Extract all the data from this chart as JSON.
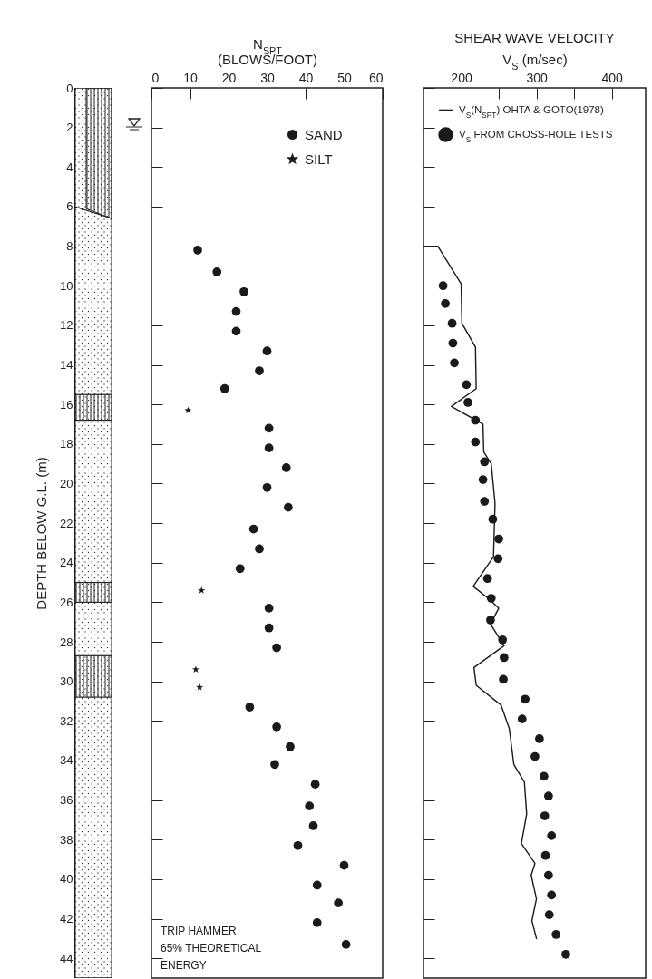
{
  "chart_data": [
    {
      "type": "scatter",
      "xlabel": "N$_{SPT}$\n(BLOWS/FOOT)",
      "ylabel": "DEPTH BELOW G.L. (m)",
      "xlim": [
        0,
        60
      ],
      "xticks": [
        0,
        10,
        20,
        30,
        40,
        50,
        60
      ],
      "ylim": [
        45,
        0
      ],
      "yticks": [
        0,
        2,
        4,
        6,
        8,
        10,
        12,
        14,
        16,
        18,
        20,
        22,
        24,
        26,
        28,
        30,
        32,
        34,
        36,
        38,
        40,
        42,
        44
      ],
      "legend": "top right",
      "annotations": [
        "TRIP HAMMER\n65% THEORETICAL\nENERGY"
      ],
      "series": [
        {
          "name": "SAND",
          "color": "#1a1a1a",
          "marker": "circle",
          "x": [
            12,
            17,
            24,
            22,
            22,
            30,
            28,
            19,
            30.5,
            30.5,
            35,
            30,
            35.5,
            26.5,
            28,
            23,
            30.5,
            30.5,
            32.5,
            25.5,
            32.5,
            36,
            32,
            42.5,
            41,
            42,
            38,
            50,
            43,
            48.5,
            43,
            50.5
          ],
          "values": [
            8.2,
            9.3,
            10.3,
            11.3,
            12.3,
            13.3,
            14.3,
            15.2,
            17.2,
            18.2,
            19.2,
            20.2,
            21.2,
            22.3,
            23.3,
            24.3,
            26.3,
            27.3,
            28.3,
            31.3,
            32.3,
            33.3,
            34.2,
            35.2,
            36.3,
            37.3,
            38.3,
            39.3,
            40.3,
            41.2,
            42.2,
            43.3
          ]
        },
        {
          "name": "SILT",
          "color": "#1a1a1a",
          "marker": "star",
          "x": [
            9.5,
            13,
            11.5,
            12.5
          ],
          "values": [
            16.3,
            25.4,
            29.4,
            30.3
          ]
        }
      ]
    },
    {
      "type": "scatter",
      "title": "SHEAR WAVE VELOCITY",
      "xlabel": "V$_{S}$ (m/sec)",
      "xlim": [
        150,
        445
      ],
      "xticks": [
        200,
        {
          "value": 250,
          "label": null
        },
        300,
        {
          "value": 350,
          "label": null
        },
        400
      ],
      "ylim": [
        45,
        0
      ],
      "yticks": [
        0,
        2,
        4,
        6,
        8,
        10,
        12,
        14,
        16,
        18,
        20,
        22,
        24,
        26,
        28,
        30,
        32,
        34,
        36,
        38,
        40,
        42,
        44
      ],
      "tick_labels": "x",
      "legend": "top left",
      "series": [
        {
          "name": "V$_{S}$(N$_{SPT}$) OHTA & GOTO(1978)",
          "type": "line",
          "color": "#1a1a1a",
          "x": [
            150,
            169,
            200,
            201,
            219,
            220,
            187,
            229,
            230,
            240,
            245,
            243,
            216,
            236,
            250,
            239,
            257,
            217,
            220,
            253,
            264,
            270,
            284,
            287,
            280,
            298,
            293,
            300,
            294,
            300
          ],
          "values": [
            8.0,
            8.0,
            9.9,
            11.9,
            13.1,
            15.2,
            16.1,
            17.0,
            18.4,
            19.0,
            21.0,
            23.7,
            25.2,
            25.8,
            26.3,
            27.1,
            28.2,
            29.3,
            30.2,
            31.2,
            32.4,
            34.2,
            35.1,
            36.7,
            38.2,
            39.2,
            39.8,
            41.0,
            42.1,
            43.0
          ]
        },
        {
          "name": "V$_{S}$ FROM CROSS-HOLE TESTS",
          "color": "#1a1a1a",
          "marker": "circle",
          "x": [
            176,
            179,
            188,
            189,
            191,
            207,
            209,
            219,
            219,
            231,
            229,
            231,
            242,
            250,
            249,
            235,
            240,
            239,
            255,
            257,
            256,
            285,
            281,
            304,
            298,
            310,
            316,
            311,
            320,
            312,
            316,
            320,
            317,
            326,
            339
          ],
          "values": [
            10.0,
            10.9,
            11.9,
            12.9,
            13.9,
            15.0,
            15.9,
            16.8,
            17.9,
            18.9,
            19.8,
            20.9,
            21.8,
            22.8,
            23.8,
            24.8,
            25.8,
            26.9,
            27.9,
            28.8,
            29.9,
            30.9,
            31.9,
            32.9,
            33.8,
            34.8,
            35.8,
            36.8,
            37.8,
            38.8,
            39.8,
            40.8,
            41.8,
            42.8,
            43.8
          ]
        }
      ]
    }
  ]
}
